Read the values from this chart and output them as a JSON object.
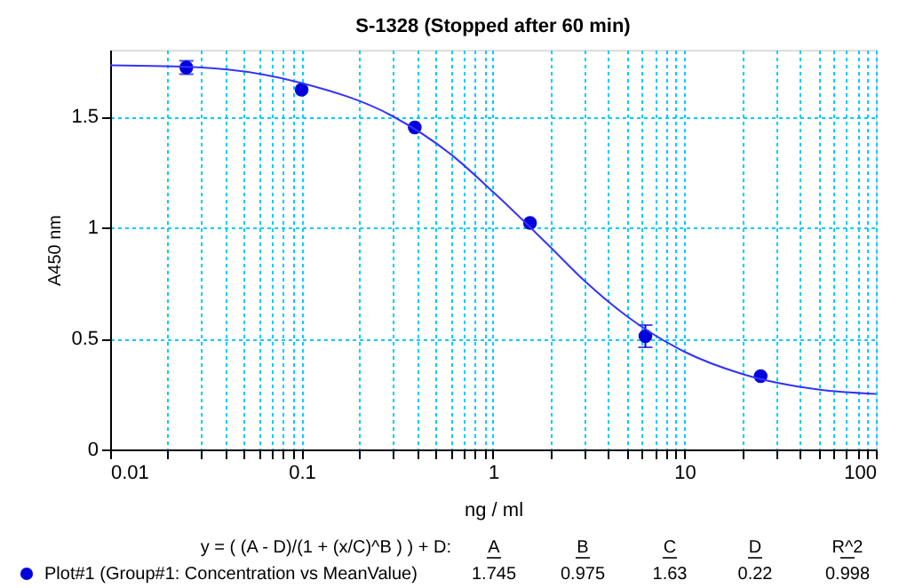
{
  "chart_data": {
    "type": "scatter",
    "title": "S-1328 (Stopped after 60 min)",
    "xlabel": "ng / ml",
    "ylabel": "A450 nm",
    "log": "x",
    "grid": true,
    "legend": "bottom",
    "xlim": [
      0.01,
      100
    ],
    "ylim": [
      0,
      1.8
    ],
    "xticks": [
      0.01,
      {
        "value": 0.02,
        "label": null
      },
      {
        "value": 0.03,
        "label": null
      },
      {
        "value": 0.04,
        "label": null
      },
      {
        "value": 0.05,
        "label": null
      },
      {
        "value": 0.06,
        "label": null
      },
      {
        "value": 0.07,
        "label": null
      },
      {
        "value": 0.08,
        "label": null
      },
      {
        "value": 0.09,
        "label": null
      },
      0.1,
      {
        "value": 0.2,
        "label": null
      },
      {
        "value": 0.3,
        "label": null
      },
      {
        "value": 0.4,
        "label": null
      },
      {
        "value": 0.5,
        "label": null
      },
      {
        "value": 0.6,
        "label": null
      },
      {
        "value": 0.7,
        "label": null
      },
      {
        "value": 0.8,
        "label": null
      },
      {
        "value": 0.9,
        "label": null
      },
      1,
      {
        "value": 2,
        "label": null
      },
      {
        "value": 3,
        "label": null
      },
      {
        "value": 4,
        "label": null
      },
      {
        "value": 5,
        "label": null
      },
      {
        "value": 6,
        "label": null
      },
      {
        "value": 7,
        "label": null
      },
      {
        "value": 8,
        "label": null
      },
      {
        "value": 9,
        "label": null
      },
      10,
      {
        "value": 20,
        "label": null
      },
      {
        "value": 30,
        "label": null
      },
      {
        "value": 40,
        "label": null
      },
      {
        "value": 50,
        "label": null
      },
      {
        "value": 60,
        "label": null
      },
      {
        "value": 70,
        "label": null
      },
      {
        "value": 80,
        "label": null
      },
      {
        "value": 90,
        "label": null
      },
      100
    ],
    "yticks": [
      0,
      0.5,
      1,
      1.5
    ],
    "series": [
      {
        "name": "Plot#1 (Group#1: Concentration vs MeanValue)",
        "marker": "circle",
        "color": "#0000dd",
        "x": [
          0.025,
          0.1,
          0.39,
          1.56,
          6.25,
          25
        ],
        "values": [
          1.72,
          1.62,
          1.45,
          1.02,
          0.51,
          0.33
        ],
        "errors": [
          0.03,
          null,
          null,
          null,
          0.05,
          null
        ]
      },
      {
        "type": "line",
        "marker": "none",
        "line_style": "solid",
        "color": "#3333ff",
        "x": [
          0.01,
          0.03,
          0.1,
          0.3,
          0.6,
          1,
          2,
          3,
          5,
          10,
          20,
          50,
          100
        ],
        "values": [
          1.73,
          1.72,
          1.65,
          1.5,
          1.33,
          1.16,
          0.91,
          0.76,
          0.6,
          0.44,
          0.34,
          0.27,
          0.25
        ]
      }
    ],
    "annotations": [
      "y = ( (A - D)/(1 + (x/C)^B ) ) + D:",
      "A",
      "B",
      "C",
      "D",
      "R^2",
      "1.745",
      "0.975",
      "1.63",
      "0.22",
      "0.998"
    ]
  }
}
